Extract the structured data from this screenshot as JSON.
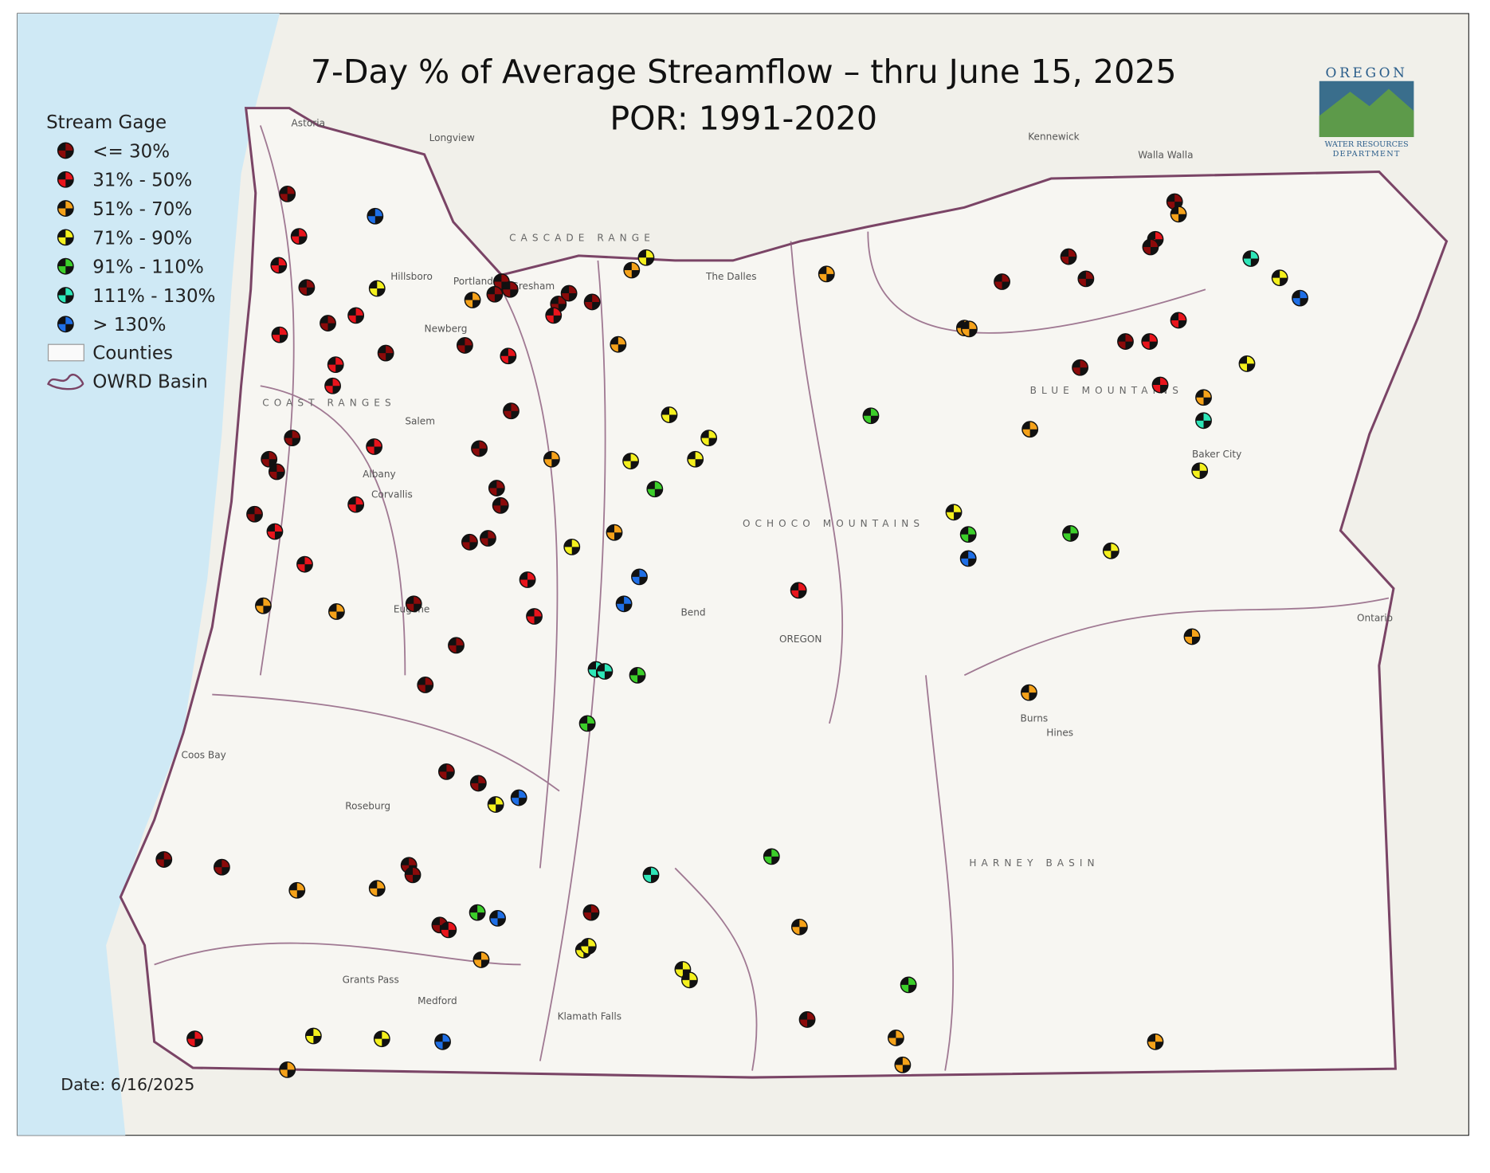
{
  "title": "7-Day % of Average Streamflow – thru June 15, 2025",
  "subtitle": "POR: 1991-2020",
  "legend": {
    "title": "Stream Gage",
    "classes": [
      "<= 30%",
      "31% - 50%",
      "51% - 70%",
      "71% - 90%",
      "91% - 110%",
      "111% - 130%",
      "> 130%"
    ],
    "class_colors": [
      "#8b0a0a",
      "#e8141c",
      "#f5a21a",
      "#f4f01e",
      "#3ccf2a",
      "#2ee6b8",
      "#1f6fe6"
    ],
    "counties": "Counties",
    "basin": "OWRD Basin"
  },
  "date": "Date: 6/16/2025",
  "logo": [
    "OREGON",
    "WATER RESOURCES",
    "DEPARTMENT"
  ],
  "places": [
    "Portland",
    "Hillsboro",
    "Gresham",
    "Salem",
    "Albany",
    "Corvallis",
    "Newberg",
    "Eugene",
    "Bend",
    "Roseburg",
    "Coos Bay",
    "Grants Pass",
    "Medford",
    "Klamath Falls",
    "Burns",
    "Hines",
    "Ontario",
    "Baker City",
    "The Dalles",
    "Astoria",
    "Longview",
    "Kennewick",
    "Walla Walla",
    "OREGON",
    "CASCADE RANGE",
    "BLUE MOUNTAINS",
    "HARNEY BASIN",
    "OCHOCO MOUNTAINS",
    "COAST RANGES"
  ],
  "gauges": [
    0,
    6,
    1,
    1,
    0,
    3,
    1,
    0,
    1,
    0,
    1,
    1,
    0,
    1,
    2,
    0,
    0,
    0,
    0,
    0,
    1,
    0,
    2,
    3,
    2,
    0,
    0,
    1,
    0,
    0,
    0,
    0,
    0,
    1,
    0,
    1,
    0,
    0,
    1,
    1,
    2,
    2,
    0,
    1,
    0,
    0,
    3,
    3,
    3,
    3,
    2,
    4,
    2,
    3,
    6,
    6,
    5,
    5,
    4,
    4,
    0,
    0,
    3,
    6,
    0,
    0,
    0,
    0,
    2,
    2,
    0,
    1,
    4,
    6,
    0,
    5,
    4,
    2,
    3,
    3,
    3,
    3,
    2,
    0,
    4,
    2,
    2,
    1,
    3,
    3,
    6,
    2,
    2,
    2,
    1,
    4,
    2,
    2,
    2,
    0,
    0,
    0,
    0,
    2,
    1,
    0,
    1,
    1,
    0,
    0,
    1,
    5,
    3,
    6,
    3,
    2,
    5,
    3,
    3,
    4,
    6,
    4,
    3,
    2,
    2
  ]
}
